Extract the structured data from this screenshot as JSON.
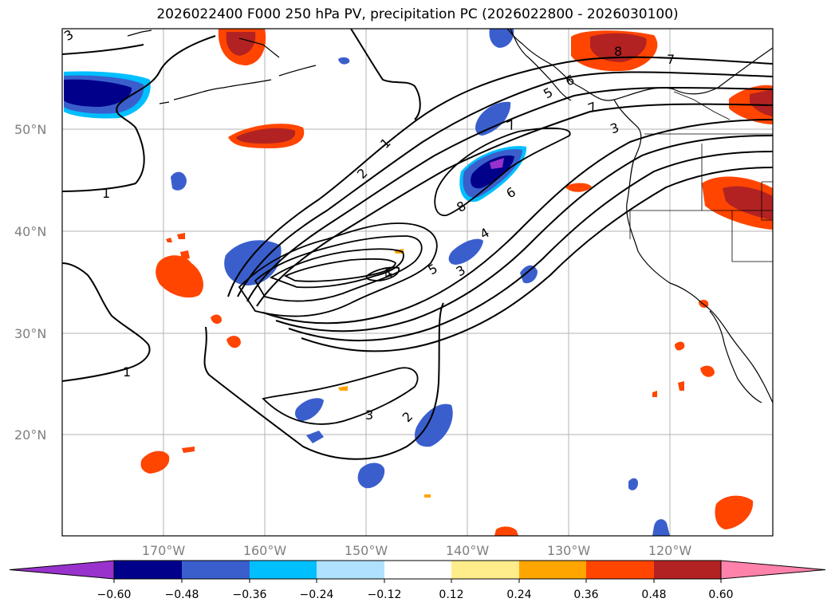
{
  "title": "2026022400 F000 250 hPa PV, precipitation PC (2026022800 - 2026030100)",
  "map": {
    "lat_labels": [
      "50°N",
      "40°N",
      "30°N",
      "20°N"
    ],
    "lon_labels": [
      "170°W",
      "160°W",
      "150°W",
      "140°W",
      "130°W",
      "120°W"
    ],
    "pv_contour_labels": [
      "1",
      "2",
      "3",
      "4",
      "5",
      "6",
      "7",
      "8",
      "1",
      "1",
      "2",
      "3",
      "3",
      "5",
      "4",
      "6",
      "7",
      "8",
      "7",
      "3"
    ]
  },
  "colorbar": {
    "colors": [
      "#9932cc",
      "#00008b",
      "#3a5fcd",
      "#00bfff",
      "#b0e2ff",
      "#ffffff",
      "#ffec8b",
      "#ffa500",
      "#ff4500",
      "#b22222",
      "#ff82ab"
    ],
    "tick_labels": [
      "−0.60",
      "−0.48",
      "−0.36",
      "−0.24",
      "−0.12",
      "0.12",
      "0.24",
      "0.36",
      "0.48",
      "0.60"
    ]
  }
}
